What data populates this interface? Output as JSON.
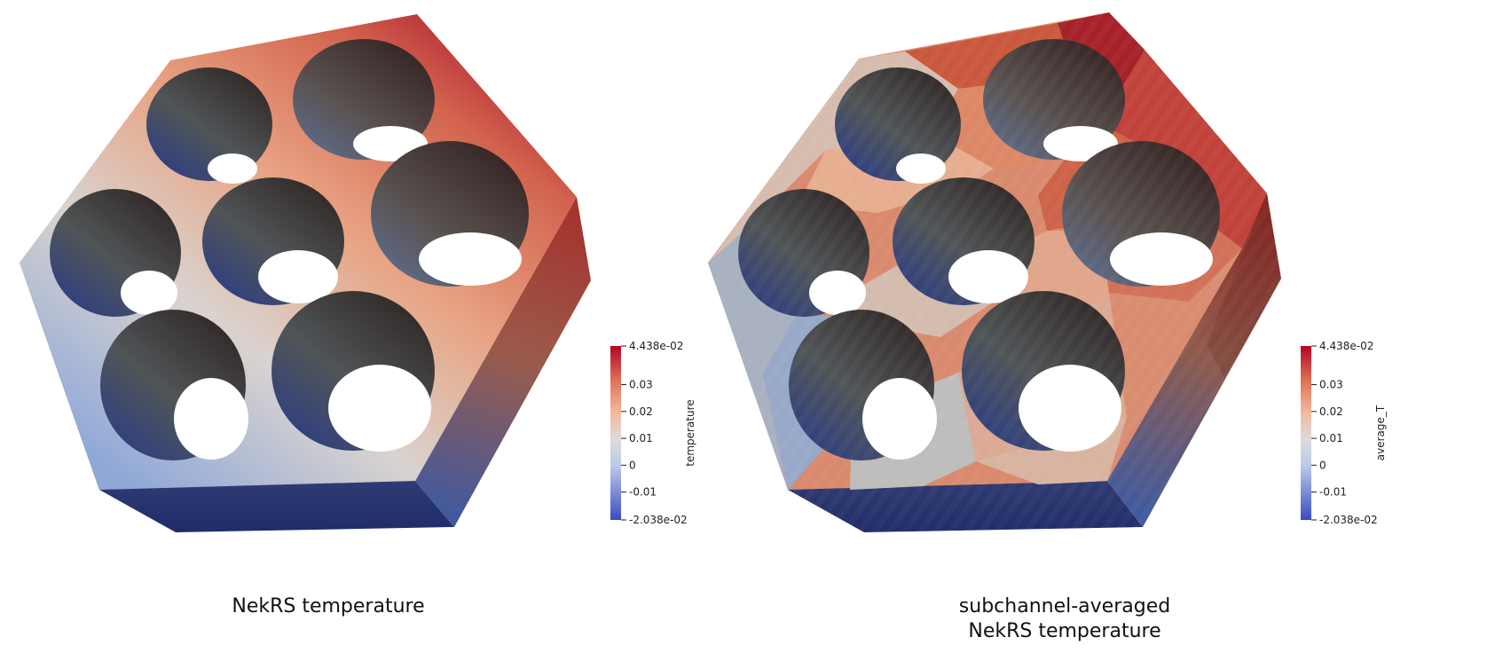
{
  "colors": {
    "high": "#b40426",
    "mid": "#dddcdc",
    "low": "#3b4cc0",
    "background": "#ffffff"
  },
  "panels": [
    {
      "caption_lines": [
        "NekRS temperature"
      ],
      "colorbar": {
        "title": "temperature",
        "max_label": "4.438e-02",
        "min_label": "-2.038e-02",
        "range": [
          -0.02038,
          0.04438
        ],
        "ticks": [
          "0.03",
          "0.02",
          "0.01",
          "0",
          "-0.01"
        ],
        "tick_values": [
          0.03,
          0.02,
          0.01,
          0,
          -0.01
        ]
      },
      "shading": "smooth"
    },
    {
      "caption_lines": [
        "subchannel-averaged",
        "NekRS temperature"
      ],
      "colorbar": {
        "title": "average_T",
        "max_label": "4.438e-02",
        "min_label": "-2.038e-02",
        "range": [
          -0.02038,
          0.04438
        ],
        "ticks": [
          "0.03",
          "0.02",
          "0.01",
          "0",
          "-0.01"
        ],
        "tick_values": [
          0.03,
          0.02,
          0.01,
          0,
          -0.01
        ]
      },
      "shading": "subchannel"
    }
  ]
}
